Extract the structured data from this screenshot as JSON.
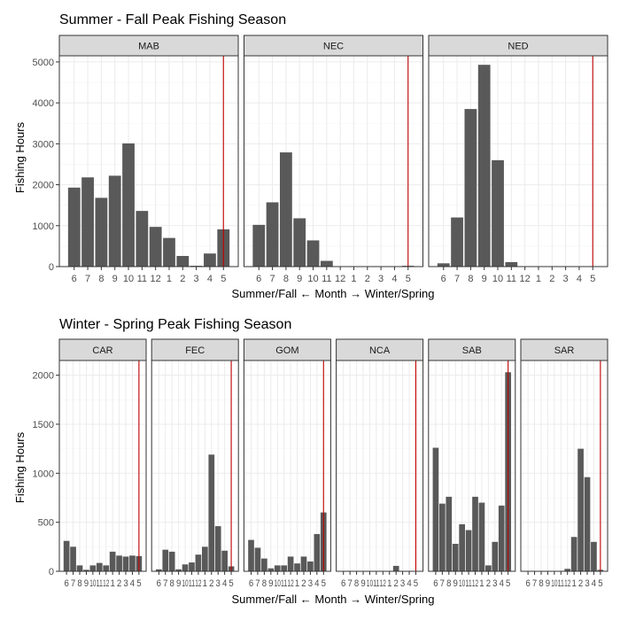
{
  "colors": {
    "bar": "#595959",
    "vline": "#c00000",
    "strip": "#d9d9d9",
    "grid_major": "#ebebeb",
    "grid_minor": "#f5f5f5",
    "border": "#333333"
  },
  "month_ticks": [
    "6",
    "7",
    "8",
    "9",
    "10",
    "11",
    "12",
    "1",
    "2",
    "3",
    "4",
    "5"
  ],
  "x_axis_label": "Summer/Fall ← Month → Winter/Spring",
  "chart_data": [
    {
      "type": "bar",
      "title": "Summer - Fall Peak Fishing Season",
      "ylabel": "Fishing Hours",
      "xlabel": "Summer/Fall ← Month → Winter/Spring",
      "ylim": [
        0,
        5150
      ],
      "yticks": [
        0,
        1000,
        2000,
        3000,
        4000,
        5000
      ],
      "vline_at": 11.5,
      "categories": [
        "6",
        "7",
        "8",
        "9",
        "10",
        "11",
        "12",
        "1",
        "2",
        "3",
        "4",
        "5"
      ],
      "panels": [
        {
          "name": "MAB",
          "values": [
            1930,
            2180,
            1680,
            2220,
            3010,
            1360,
            970,
            700,
            260,
            20,
            320,
            910
          ]
        },
        {
          "name": "NEC",
          "values": [
            1020,
            1570,
            2790,
            1180,
            640,
            140,
            0,
            0,
            0,
            0,
            0,
            20
          ]
        },
        {
          "name": "NED",
          "values": [
            80,
            1200,
            3850,
            4930,
            2600,
            110,
            0,
            0,
            0,
            0,
            0,
            0
          ]
        }
      ]
    },
    {
      "type": "bar",
      "title": "Winter - Spring Peak Fishing Season",
      "ylabel": "Fishing Hours",
      "xlabel": "Summer/Fall ← Month → Winter/Spring",
      "ylim": [
        0,
        2150
      ],
      "yticks": [
        0,
        500,
        1000,
        1500,
        2000
      ],
      "vline_at": 11.5,
      "categories": [
        "6",
        "7",
        "8",
        "9",
        "10",
        "11",
        "12",
        "1",
        "2",
        "3",
        "4",
        "5"
      ],
      "panels": [
        {
          "name": "CAR",
          "values": [
            310,
            250,
            60,
            15,
            60,
            85,
            60,
            200,
            160,
            150,
            160,
            155
          ]
        },
        {
          "name": "FEC",
          "values": [
            20,
            220,
            200,
            20,
            70,
            90,
            170,
            250,
            1190,
            460,
            210,
            50
          ]
        },
        {
          "name": "GOM",
          "values": [
            320,
            240,
            130,
            30,
            60,
            60,
            150,
            80,
            150,
            100,
            380,
            600
          ]
        },
        {
          "name": "NCA",
          "values": [
            0,
            0,
            0,
            0,
            0,
            0,
            0,
            0,
            55,
            0,
            0,
            0
          ]
        },
        {
          "name": "SAB",
          "values": [
            1260,
            690,
            760,
            280,
            480,
            420,
            760,
            700,
            60,
            300,
            670,
            2030
          ]
        },
        {
          "name": "SAR",
          "values": [
            0,
            0,
            0,
            0,
            0,
            0,
            25,
            350,
            1250,
            960,
            300,
            15
          ]
        }
      ]
    }
  ]
}
